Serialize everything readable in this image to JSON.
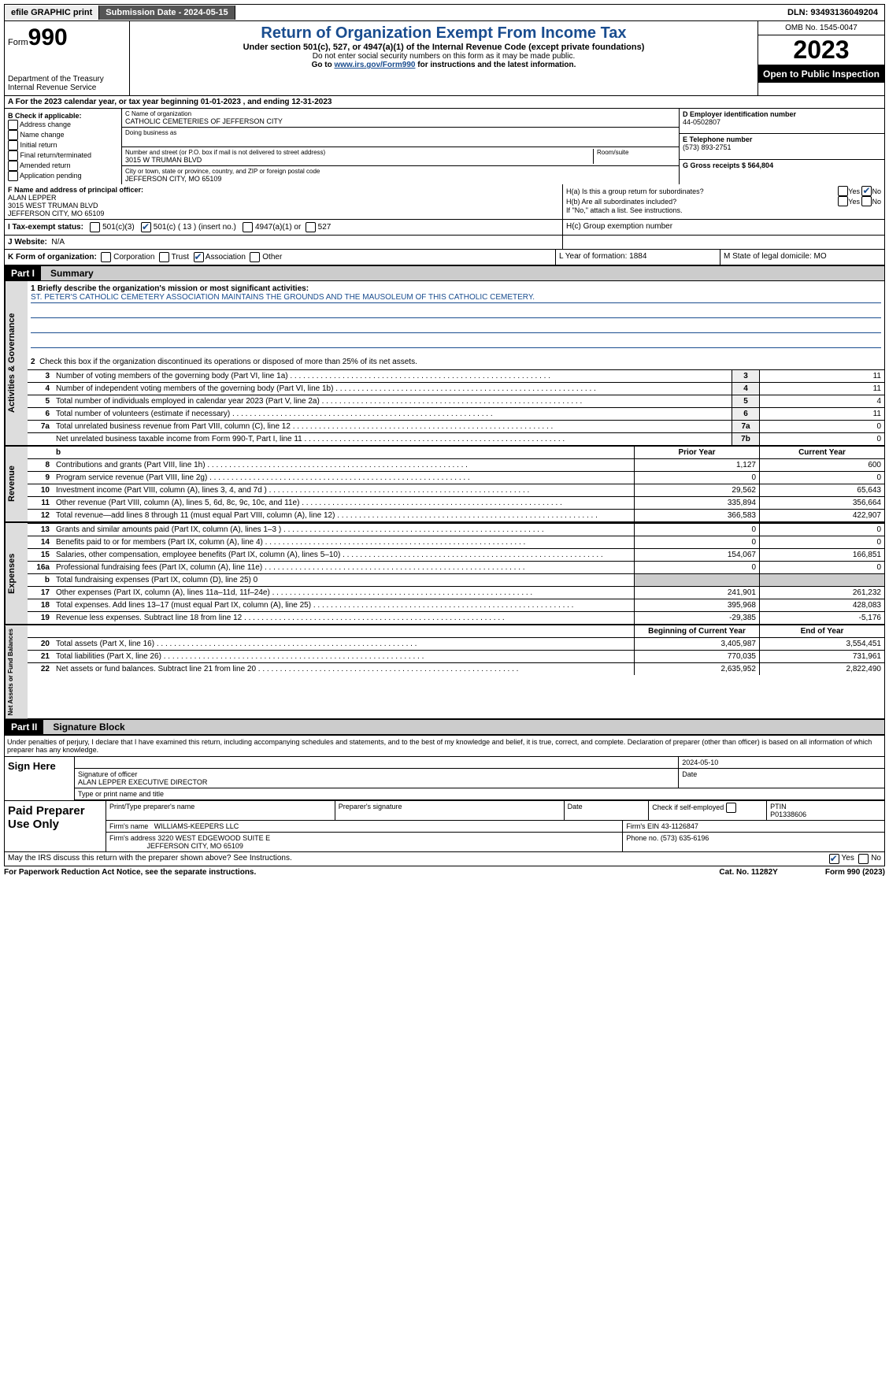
{
  "topbar": {
    "efile": "efile GRAPHIC print",
    "submission": "Submission Date - 2024-05-15",
    "dln": "DLN: 93493136049204"
  },
  "header": {
    "form_prefix": "Form",
    "form_number": "990",
    "dept": "Department of the Treasury",
    "irs": "Internal Revenue Service",
    "title": "Return of Organization Exempt From Income Tax",
    "sub1": "Under section 501(c), 527, or 4947(a)(1) of the Internal Revenue Code (except private foundations)",
    "sub2": "Do not enter social security numbers on this form as it may be made public.",
    "sub3_pre": "Go to ",
    "sub3_link": "www.irs.gov/Form990",
    "sub3_post": " for instructions and the latest information.",
    "omb": "OMB No. 1545-0047",
    "year": "2023",
    "open": "Open to Public Inspection"
  },
  "row_a": "A For the 2023 calendar year, or tax year beginning 01-01-2023    , and ending 12-31-2023",
  "box_b": {
    "header": "B Check if applicable:",
    "items": [
      "Address change",
      "Name change",
      "Initial return",
      "Final return/terminated",
      "Amended return",
      "Application pending"
    ]
  },
  "box_c": {
    "name_label": "C Name of organization",
    "name": "CATHOLIC CEMETERIES OF JEFFERSON CITY",
    "dba_label": "Doing business as",
    "dba": "",
    "addr_label": "Number and street (or P.O. box if mail is not delivered to street address)",
    "addr": "3015 W TRUMAN BLVD",
    "room_label": "Room/suite",
    "city_label": "City or town, state or province, country, and ZIP or foreign postal code",
    "city": "JEFFERSON CITY, MO  65109"
  },
  "box_d": {
    "label": "D Employer identification number",
    "val": "44-0502807"
  },
  "box_e": {
    "label": "E Telephone number",
    "val": "(573) 893-2751"
  },
  "box_g": {
    "label": "G Gross receipts $ 564,804"
  },
  "box_f": {
    "label": "F  Name and address of principal officer:",
    "name": "ALAN LEPPER",
    "addr1": "3015 WEST TRUMAN BLVD",
    "addr2": "JEFFERSON CITY, MO  65109"
  },
  "box_h": {
    "a": "H(a)  Is this a group return for subordinates?",
    "b": "H(b)  Are all subordinates included?",
    "b_note": "If \"No,\" attach a list. See instructions.",
    "c": "H(c)  Group exemption number"
  },
  "row_i": {
    "label": "I    Tax-exempt status:",
    "opts": [
      "501(c)(3)",
      "501(c) ( 13 ) (insert no.)",
      "4947(a)(1) or",
      "527"
    ]
  },
  "row_j": {
    "label": "J    Website:",
    "val": "N/A"
  },
  "row_k": {
    "label": "K Form of organization:",
    "opts": [
      "Corporation",
      "Trust",
      "Association",
      "Other"
    ]
  },
  "row_l": "L Year of formation: 1884",
  "row_m": "M State of legal domicile: MO",
  "parts": {
    "p1": "Part I",
    "p1t": "Summary",
    "p2": "Part II",
    "p2t": "Signature Block"
  },
  "summary": {
    "q1_label": "1   Briefly describe the organization's mission or most significant activities:",
    "q1_text": "ST. PETER'S CATHOLIC CEMETERY ASSOCIATION MAINTAINS THE GROUNDS AND THE MAUSOLEUM OF THIS CATHOLIC CEMETERY.",
    "q2": "Check this box        if the organization discontinued its operations or disposed of more than 25% of its net assets.",
    "lines_gov": [
      {
        "n": "3",
        "d": "Number of voting members of the governing body (Part VI, line 1a)",
        "b": "3",
        "v": "11"
      },
      {
        "n": "4",
        "d": "Number of independent voting members of the governing body (Part VI, line 1b)",
        "b": "4",
        "v": "11"
      },
      {
        "n": "5",
        "d": "Total number of individuals employed in calendar year 2023 (Part V, line 2a)",
        "b": "5",
        "v": "4"
      },
      {
        "n": "6",
        "d": "Total number of volunteers (estimate if necessary)",
        "b": "6",
        "v": "11"
      },
      {
        "n": "7a",
        "d": "Total unrelated business revenue from Part VIII, column (C), line 12",
        "b": "7a",
        "v": "0"
      },
      {
        "n": "",
        "d": "Net unrelated business taxable income from Form 990-T, Part I, line 11",
        "b": "7b",
        "v": "0"
      }
    ],
    "colheads": {
      "prior": "Prior Year",
      "current": "Current Year",
      "begin": "Beginning of Current Year",
      "end": "End of Year"
    },
    "lines_rev": [
      {
        "n": "8",
        "d": "Contributions and grants (Part VIII, line 1h)",
        "p": "1,127",
        "c": "600"
      },
      {
        "n": "9",
        "d": "Program service revenue (Part VIII, line 2g)",
        "p": "0",
        "c": "0"
      },
      {
        "n": "10",
        "d": "Investment income (Part VIII, column (A), lines 3, 4, and 7d )",
        "p": "29,562",
        "c": "65,643"
      },
      {
        "n": "11",
        "d": "Other revenue (Part VIII, column (A), lines 5, 6d, 8c, 9c, 10c, and 11e)",
        "p": "335,894",
        "c": "356,664"
      },
      {
        "n": "12",
        "d": "Total revenue—add lines 8 through 11 (must equal Part VIII, column (A), line 12)",
        "p": "366,583",
        "c": "422,907"
      }
    ],
    "lines_exp": [
      {
        "n": "13",
        "d": "Grants and similar amounts paid (Part IX, column (A), lines 1–3 )",
        "p": "0",
        "c": "0"
      },
      {
        "n": "14",
        "d": "Benefits paid to or for members (Part IX, column (A), line 4)",
        "p": "0",
        "c": "0"
      },
      {
        "n": "15",
        "d": "Salaries, other compensation, employee benefits (Part IX, column (A), lines 5–10)",
        "p": "154,067",
        "c": "166,851"
      },
      {
        "n": "16a",
        "d": "Professional fundraising fees (Part IX, column (A), line 11e)",
        "p": "0",
        "c": "0"
      },
      {
        "n": "b",
        "d": "Total fundraising expenses (Part IX, column (D), line 25) 0",
        "p": "",
        "c": "",
        "grey": true
      },
      {
        "n": "17",
        "d": "Other expenses (Part IX, column (A), lines 11a–11d, 11f–24e)",
        "p": "241,901",
        "c": "261,232"
      },
      {
        "n": "18",
        "d": "Total expenses. Add lines 13–17 (must equal Part IX, column (A), line 25)",
        "p": "395,968",
        "c": "428,083"
      },
      {
        "n": "19",
        "d": "Revenue less expenses. Subtract line 18 from line 12",
        "p": "-29,385",
        "c": "-5,176"
      }
    ],
    "lines_net": [
      {
        "n": "20",
        "d": "Total assets (Part X, line 16)",
        "p": "3,405,987",
        "c": "3,554,451"
      },
      {
        "n": "21",
        "d": "Total liabilities (Part X, line 26)",
        "p": "770,035",
        "c": "731,961"
      },
      {
        "n": "22",
        "d": "Net assets or fund balances. Subtract line 21 from line 20",
        "p": "2,635,952",
        "c": "2,822,490"
      }
    ],
    "tabs": {
      "gov": "Activities & Governance",
      "rev": "Revenue",
      "exp": "Expenses",
      "net": "Net Assets or Fund Balances"
    }
  },
  "sig": {
    "penalty": "Under penalties of perjury, I declare that I have examined this return, including accompanying schedules and statements, and to the best of my knowledge and belief, it is true, correct, and complete. Declaration of preparer (other than officer) is based on all information of which preparer has any knowledge.",
    "sign_here": "Sign Here",
    "sig_date": "2024-05-10",
    "officer_line": "Signature of officer",
    "officer": "ALAN LEPPER  EXECUTIVE DIRECTOR",
    "type_line": "Type or print name and title",
    "date_label": "Date",
    "paid": "Paid Preparer Use Only",
    "prep_name_label": "Print/Type preparer's name",
    "prep_sig_label": "Preparer's signature",
    "check_self": "Check        if self-employed",
    "ptin_label": "PTIN",
    "ptin": "P01338606",
    "firm_name_label": "Firm's name",
    "firm_name": "WILLIAMS-KEEPERS LLC",
    "firm_ein_label": "Firm's EIN",
    "firm_ein": "43-1126847",
    "firm_addr_label": "Firm's address",
    "firm_addr1": "3220 WEST EDGEWOOD SUITE E",
    "firm_addr2": "JEFFERSON CITY, MO  65109",
    "phone_label": "Phone no.",
    "phone": "(573) 635-6196",
    "discuss": "May the IRS discuss this return with the preparer shown above? See Instructions."
  },
  "footer": {
    "paperwork": "For Paperwork Reduction Act Notice, see the separate instructions.",
    "cat": "Cat. No. 11282Y",
    "form": "Form 990 (2023)"
  },
  "yn": {
    "yes": "Yes",
    "no": "No"
  }
}
